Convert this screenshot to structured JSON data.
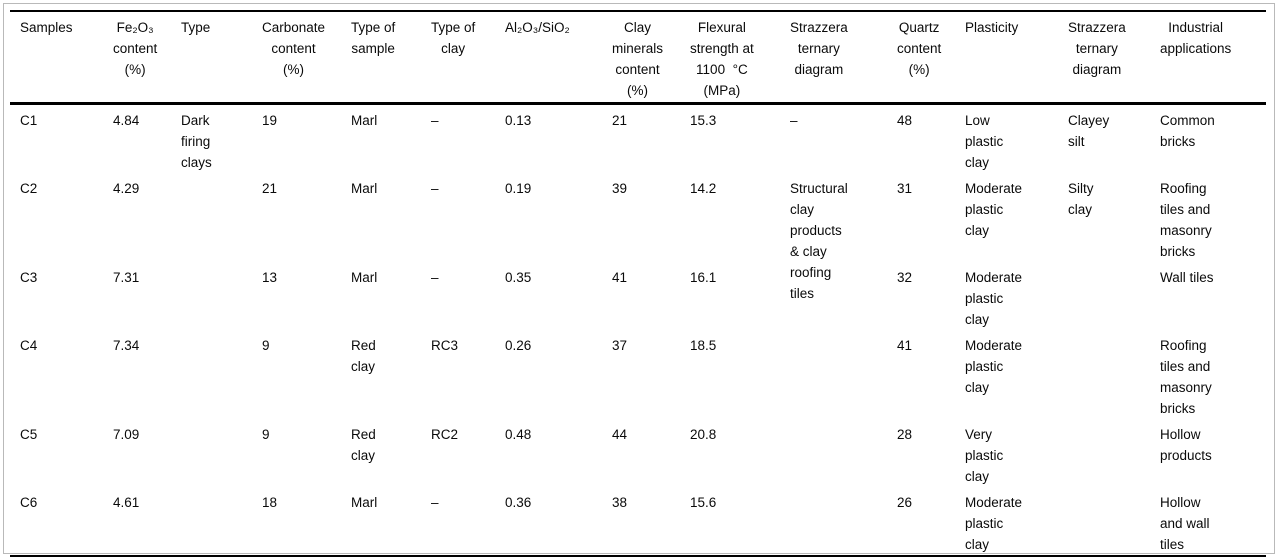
{
  "frame": {
    "border_color": "#b9b9b9",
    "rule_color": "#000000"
  },
  "table": {
    "headers": {
      "samples": "Samples",
      "fe2o3": "Fe₂O₃\ncontent\n(%)",
      "type": "Type",
      "carbonate": "Carbonate\ncontent\n(%)",
      "type_of_sample": "Type of\nsample",
      "type_of_clay": "Type of\nclay",
      "al2o3_sio2": "Al₂O₃/SiO₂",
      "clay_minerals": "Clay\nminerals\ncontent\n(%)",
      "flexural": "Flexural\nstrength at\n1100  °C\n(MPa)",
      "strazzera1": "Strazzera\nternary\ndiagram",
      "quartz": "Quartz\ncontent\n(%)",
      "plasticity": "Plasticity",
      "strazzera2": "Strazzera\nternary\ndiagram",
      "industrial": "Industrial\napplications"
    },
    "merged": {
      "type_group": "Dark\nfiring\nclays",
      "strazzera1_group": "Structural\nclay\nproducts\n& clay\nroofing\ntiles",
      "strazzera2_group": "Silty\nclay"
    },
    "rows": [
      {
        "sample": "C1",
        "fe2o3": "4.84",
        "carbonate": "19",
        "type_of_sample": "Marl",
        "type_of_clay": "–",
        "al2o3_sio2": "0.13",
        "clay_minerals": "21",
        "flexural": "15.3",
        "strazzera1": "–",
        "quartz": "48",
        "plasticity": "Low\nplastic\nclay",
        "strazzera2": "Clayey\nsilt",
        "industrial": "Common\nbricks"
      },
      {
        "sample": "C2",
        "fe2o3": "4.29",
        "carbonate": "21",
        "type_of_sample": "Marl",
        "type_of_clay": "–",
        "al2o3_sio2": "0.19",
        "clay_minerals": "39",
        "flexural": "14.2",
        "quartz": "31",
        "plasticity": "Moderate\nplastic\nclay",
        "industrial": "Roofing\ntiles and\nmasonry\nbricks"
      },
      {
        "sample": "C3",
        "fe2o3": "7.31",
        "carbonate": "13",
        "type_of_sample": "Marl",
        "type_of_clay": "–",
        "al2o3_sio2": "0.35",
        "clay_minerals": "41",
        "flexural": "16.1",
        "quartz": "32",
        "plasticity": "Moderate\nplastic\nclay",
        "industrial": "Wall tiles"
      },
      {
        "sample": "C4",
        "fe2o3": "7.34",
        "carbonate": "9",
        "type_of_sample": "Red\nclay",
        "type_of_clay": "RC3",
        "al2o3_sio2": "0.26",
        "clay_minerals": "37",
        "flexural": "18.5",
        "quartz": "41",
        "plasticity": "Moderate\nplastic\nclay",
        "industrial": "Roofing\ntiles and\nmasonry\nbricks"
      },
      {
        "sample": "C5",
        "fe2o3": "7.09",
        "carbonate": "9",
        "type_of_sample": "Red\nclay",
        "type_of_clay": "RC2",
        "al2o3_sio2": "0.48",
        "clay_minerals": "44",
        "flexural": "20.8",
        "quartz": "28",
        "plasticity": "Very\nplastic\nclay",
        "industrial": "Hollow\nproducts"
      },
      {
        "sample": "C6",
        "fe2o3": "4.61",
        "carbonate": "18",
        "type_of_sample": "Marl",
        "type_of_clay": "–",
        "al2o3_sio2": "0.36",
        "clay_minerals": "38",
        "flexural": "15.6",
        "quartz": "26",
        "plasticity": "Moderate\nplastic\nclay",
        "industrial": "Hollow\nand wall\ntiles"
      }
    ]
  }
}
